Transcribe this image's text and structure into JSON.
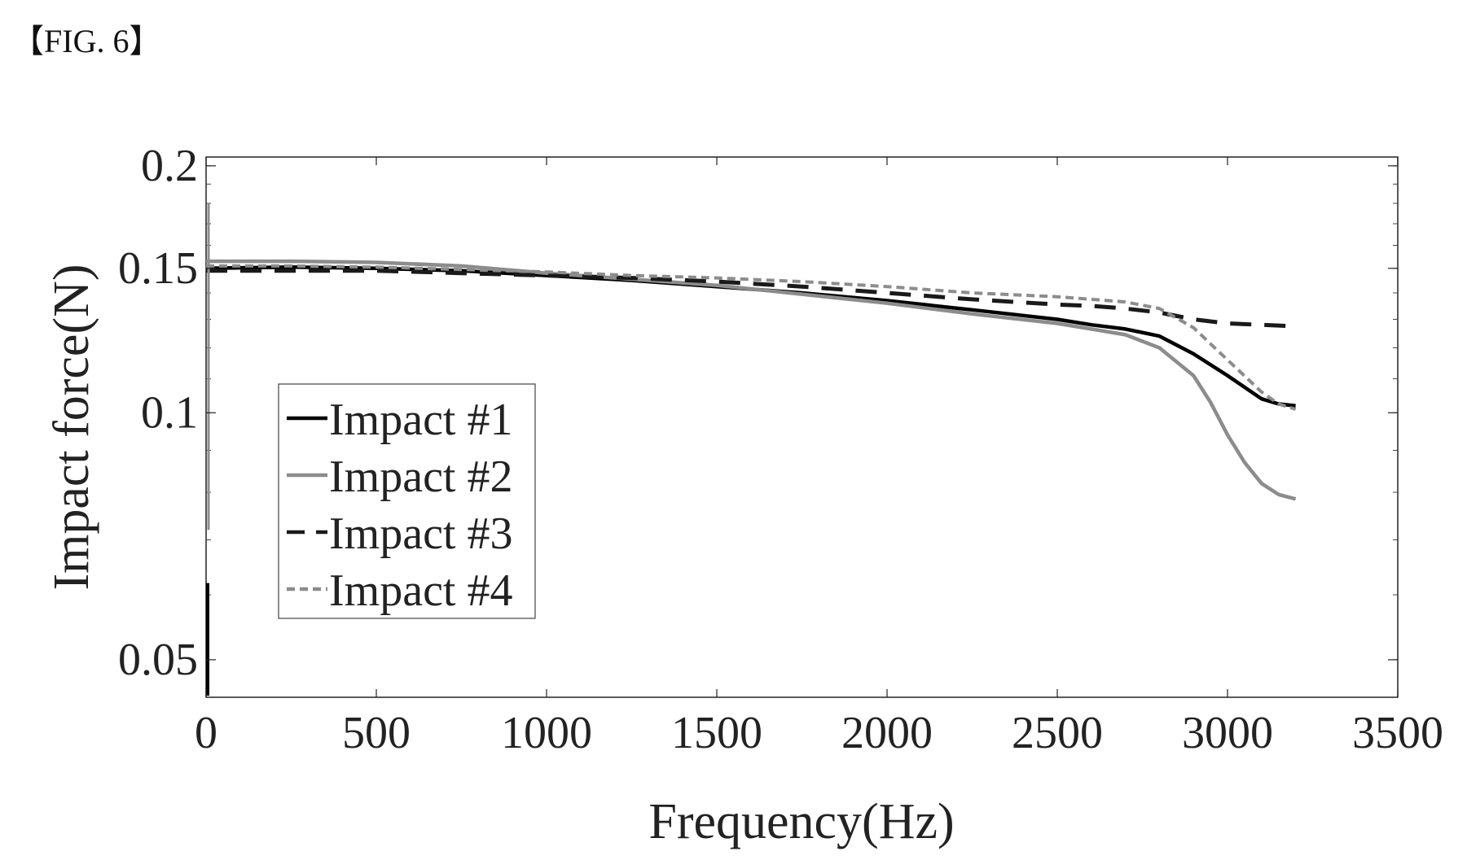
{
  "figure": {
    "label": "【FIG. 6】"
  },
  "chart_data": {
    "type": "line",
    "title": "",
    "xlabel": "Frequency(Hz)",
    "ylabel": "Impact force(N)",
    "xlim": [
      0,
      3500
    ],
    "ylim": [
      0.045,
      0.205
    ],
    "yscale": "log",
    "xticks": [
      0,
      500,
      1000,
      1500,
      2000,
      2500,
      3000,
      3500
    ],
    "yticks": [
      0.05,
      0.1,
      0.15,
      0.2
    ],
    "ytick_labels": [
      "0.05",
      "0.1",
      "0.15",
      "0.2"
    ],
    "legend": {
      "position": "center-left"
    },
    "series": [
      {
        "name": "Impact #1",
        "color": "#000000",
        "style": "solid",
        "x": [
          0,
          250,
          500,
          750,
          1000,
          1250,
          1500,
          1750,
          2000,
          2250,
          2500,
          2600,
          2700,
          2800,
          2900,
          3000,
          3100,
          3150,
          3200
        ],
        "y": [
          0.15,
          0.1505,
          0.15,
          0.149,
          0.147,
          0.145,
          0.1425,
          0.14,
          0.137,
          0.1335,
          0.13,
          0.128,
          0.1265,
          0.124,
          0.118,
          0.111,
          0.104,
          0.1025,
          0.102
        ]
      },
      {
        "name": "Impact #2",
        "color": "#8c8c8c",
        "style": "solid",
        "x": [
          0,
          250,
          500,
          750,
          1000,
          1250,
          1500,
          1750,
          2000,
          2250,
          2500,
          2600,
          2700,
          2800,
          2900,
          2950,
          3000,
          3050,
          3100,
          3150,
          3200
        ],
        "y": [
          0.153,
          0.153,
          0.1525,
          0.151,
          0.148,
          0.1455,
          0.143,
          0.1395,
          0.136,
          0.132,
          0.1285,
          0.1265,
          0.1245,
          0.12,
          0.111,
          0.103,
          0.094,
          0.087,
          0.082,
          0.0795,
          0.0785
        ]
      },
      {
        "name": "Impact #3",
        "color": "#1a1a1a",
        "style": "dashed",
        "x": [
          0,
          250,
          500,
          750,
          1000,
          1250,
          1500,
          1750,
          2000,
          2250,
          2500,
          2600,
          2700,
          2800,
          2900,
          3000,
          3100,
          3200
        ],
        "y": [
          0.149,
          0.149,
          0.149,
          0.148,
          0.147,
          0.146,
          0.1445,
          0.1425,
          0.14,
          0.1375,
          0.1355,
          0.135,
          0.134,
          0.1325,
          0.13,
          0.1285,
          0.128,
          0.1275
        ]
      },
      {
        "name": "Impact #4",
        "color": "#8c8c8c",
        "style": "dashed",
        "x": [
          0,
          250,
          500,
          750,
          1000,
          1250,
          1500,
          1750,
          2000,
          2250,
          2500,
          2600,
          2700,
          2800,
          2900,
          3000,
          3100,
          3150,
          3200
        ],
        "y": [
          0.151,
          0.151,
          0.1505,
          0.1495,
          0.1485,
          0.147,
          0.146,
          0.1445,
          0.1425,
          0.14,
          0.1385,
          0.1375,
          0.1365,
          0.134,
          0.127,
          0.116,
          0.106,
          0.1025,
          0.101
        ]
      }
    ]
  }
}
